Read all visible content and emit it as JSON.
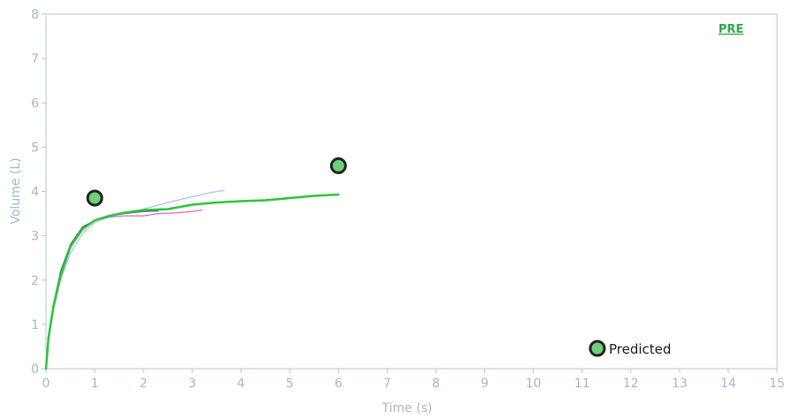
{
  "chart_data": {
    "type": "line",
    "title": "",
    "xlabel": "Time (s)",
    "ylabel": "Volume (L)",
    "xlim": [
      0,
      15
    ],
    "ylim": [
      0,
      8
    ],
    "x_ticks": [
      0,
      1,
      2,
      3,
      4,
      5,
      6,
      7,
      8,
      9,
      10,
      11,
      12,
      13,
      14,
      15
    ],
    "y_ticks": [
      0,
      1,
      2,
      3,
      4,
      5,
      6,
      7,
      8
    ],
    "grid": false,
    "corner_label": "PRE",
    "series": [
      {
        "color": "#a9c4ec",
        "points": [
          [
            0,
            0
          ],
          [
            0.05,
            0.6
          ],
          [
            0.15,
            1.3
          ],
          [
            0.3,
            2.0
          ],
          [
            0.5,
            2.6
          ],
          [
            0.75,
            3.05
          ],
          [
            1.0,
            3.3
          ],
          [
            1.3,
            3.42
          ],
          [
            1.6,
            3.5
          ],
          [
            2.0,
            3.6
          ],
          [
            2.5,
            3.75
          ],
          [
            3.0,
            3.88
          ],
          [
            3.4,
            3.98
          ],
          [
            3.65,
            4.02
          ]
        ]
      },
      {
        "color": "#d26ac6",
        "points": [
          [
            0,
            0
          ],
          [
            0.05,
            0.7
          ],
          [
            0.15,
            1.4
          ],
          [
            0.3,
            2.15
          ],
          [
            0.5,
            2.75
          ],
          [
            0.75,
            3.15
          ],
          [
            1.0,
            3.35
          ],
          [
            1.3,
            3.42
          ],
          [
            1.6,
            3.45
          ],
          [
            2.0,
            3.45
          ],
          [
            2.3,
            3.5
          ],
          [
            2.7,
            3.52
          ],
          [
            3.0,
            3.55
          ],
          [
            3.2,
            3.58
          ]
        ]
      },
      {
        "color": "#555555",
        "points": [
          [
            0,
            0
          ],
          [
            0.05,
            0.75
          ],
          [
            0.15,
            1.45
          ],
          [
            0.3,
            2.2
          ],
          [
            0.5,
            2.8
          ],
          [
            0.75,
            3.2
          ],
          [
            1.0,
            3.35
          ],
          [
            1.3,
            3.45
          ],
          [
            1.6,
            3.5
          ],
          [
            2.0,
            3.55
          ],
          [
            2.3,
            3.56
          ]
        ]
      },
      {
        "color": "#2ec43c",
        "points": [
          [
            0,
            0
          ],
          [
            0.05,
            0.7
          ],
          [
            0.15,
            1.4
          ],
          [
            0.3,
            2.1
          ],
          [
            0.5,
            2.75
          ],
          [
            0.75,
            3.15
          ],
          [
            1.0,
            3.35
          ],
          [
            1.3,
            3.45
          ],
          [
            1.6,
            3.52
          ],
          [
            2.0,
            3.58
          ],
          [
            2.5,
            3.6
          ],
          [
            3.0,
            3.7
          ],
          [
            3.5,
            3.75
          ],
          [
            4.0,
            3.78
          ],
          [
            4.5,
            3.8
          ],
          [
            5.0,
            3.85
          ],
          [
            5.5,
            3.9
          ],
          [
            6.0,
            3.93
          ]
        ]
      }
    ],
    "predicted_points": [
      [
        1,
        3.85
      ],
      [
        6,
        4.58
      ]
    ],
    "legend": {
      "label": "Predicted",
      "position": "bottom-right"
    }
  }
}
